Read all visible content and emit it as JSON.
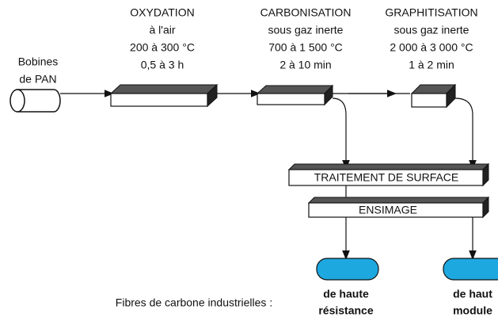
{
  "source": {
    "lines": [
      "Bobines",
      "de PAN"
    ]
  },
  "stages": [
    {
      "lines": [
        "OXYDATION",
        "à l'air",
        "200 à 300 °C",
        "0,5 à 3 h"
      ]
    },
    {
      "lines": [
        "CARBONISATION",
        "sous gaz inerte",
        "700 à 1 500 °C",
        "2 à 10 min"
      ]
    },
    {
      "lines": [
        "GRAPHITISATION",
        "sous gaz inerte",
        "2 000 à 3 000 °C",
        "1 à 2 min"
      ]
    }
  ],
  "treatments": [
    "TRAITEMENT DE SURFACE",
    "ENSIMAGE"
  ],
  "products": {
    "caption": "Fibres de carbone industrielles :",
    "items": [
      {
        "lines": [
          "de haute",
          "résistance"
        ]
      },
      {
        "lines": [
          "de haut",
          "module"
        ]
      }
    ]
  }
}
